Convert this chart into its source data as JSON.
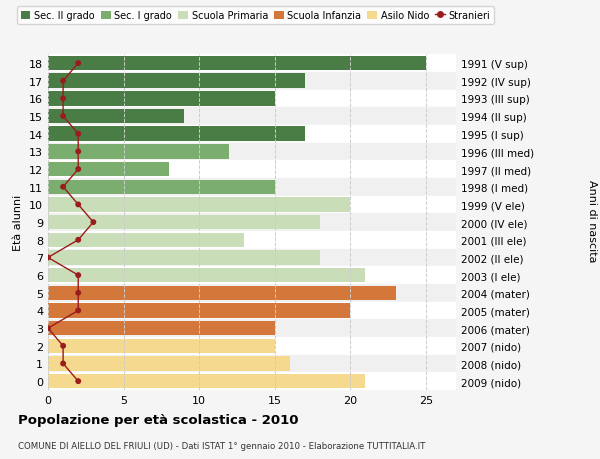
{
  "ages": [
    18,
    17,
    16,
    15,
    14,
    13,
    12,
    11,
    10,
    9,
    8,
    7,
    6,
    5,
    4,
    3,
    2,
    1,
    0
  ],
  "right_labels": [
    "1991 (V sup)",
    "1992 (IV sup)",
    "1993 (III sup)",
    "1994 (II sup)",
    "1995 (I sup)",
    "1996 (III med)",
    "1997 (II med)",
    "1998 (I med)",
    "1999 (V ele)",
    "2000 (IV ele)",
    "2001 (III ele)",
    "2002 (II ele)",
    "2003 (I ele)",
    "2004 (mater)",
    "2005 (mater)",
    "2006 (mater)",
    "2007 (nido)",
    "2008 (nido)",
    "2009 (nido)"
  ],
  "bar_values": [
    25,
    17,
    15,
    9,
    17,
    12,
    8,
    15,
    20,
    18,
    13,
    18,
    21,
    23,
    20,
    15,
    15,
    16,
    21
  ],
  "bar_colors": [
    "#4a7c45",
    "#4a7c45",
    "#4a7c45",
    "#4a7c45",
    "#4a7c45",
    "#7aad6e",
    "#7aad6e",
    "#7aad6e",
    "#c8ddb8",
    "#c8ddb8",
    "#c8ddb8",
    "#c8ddb8",
    "#c8ddb8",
    "#d4773a",
    "#d4773a",
    "#d4773a",
    "#f5d98e",
    "#f5d98e",
    "#f5d98e"
  ],
  "stranieri_values": [
    2,
    1,
    1,
    1,
    2,
    2,
    2,
    1,
    2,
    3,
    2,
    0,
    2,
    2,
    2,
    0,
    1,
    1,
    2
  ],
  "legend_labels": [
    "Sec. II grado",
    "Sec. I grado",
    "Scuola Primaria",
    "Scuola Infanzia",
    "Asilo Nido",
    "Stranieri"
  ],
  "legend_colors": [
    "#4a7c45",
    "#7aad6e",
    "#c8ddb8",
    "#d4773a",
    "#f5d98e",
    "#9b1c1c"
  ],
  "ylabel_left": "Età alunni",
  "ylabel_right": "Anni di nascita",
  "xlim": [
    0,
    27
  ],
  "xticks": [
    0,
    5,
    10,
    15,
    20,
    25
  ],
  "title": "Popolazione per età scolastica - 2010",
  "subtitle": "COMUNE DI AIELLO DEL FRIULI (UD) - Dati ISTAT 1° gennaio 2010 - Elaborazione TUTTITALIA.IT",
  "bg_color": "#f5f5f5",
  "row_colors": [
    "#ffffff",
    "#f0f0f0"
  ]
}
